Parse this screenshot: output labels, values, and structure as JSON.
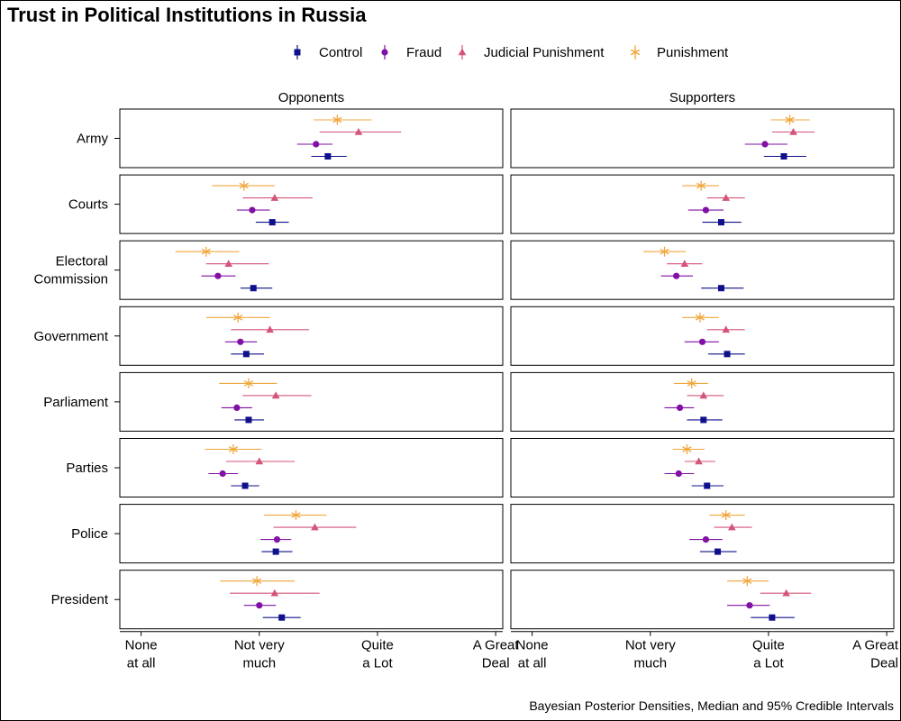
{
  "chart_data": {
    "type": "dot-interval",
    "title": "Trust in Political Institutions in Russia",
    "caption": "Bayesian Posterior Densities, Median and 95% Credible Intervals",
    "panels": [
      "Opponents",
      "Supporters"
    ],
    "institutions": [
      "Army",
      "Courts",
      "Electoral Commission",
      "Government",
      "Parliament",
      "Parties",
      "Police",
      "President"
    ],
    "institution_lines": [
      [
        "Army"
      ],
      [
        "Courts"
      ],
      [
        "Electoral",
        "Commission"
      ],
      [
        "Government"
      ],
      [
        "Parliament"
      ],
      [
        "Parties"
      ],
      [
        "Police"
      ],
      [
        "President"
      ]
    ],
    "xaxis": {
      "range": [
        0.82,
        4.06
      ],
      "ticks": [
        1,
        2,
        3,
        4
      ],
      "tick_labels": [
        [
          "None",
          "at all"
        ],
        [
          "Not very",
          "much"
        ],
        [
          "Quite",
          "a Lot"
        ],
        [
          "A Great",
          "Deal"
        ]
      ]
    },
    "series": [
      {
        "name": "Punishment",
        "color": "#f0a73d",
        "marker": "asterisk"
      },
      {
        "name": "Judicial Punishment",
        "color": "#d4547a",
        "marker": "triangle"
      },
      {
        "name": "Fraud",
        "color": "#8210a5",
        "marker": "circle"
      },
      {
        "name": "Control",
        "color": "#10108c",
        "marker": "square"
      }
    ],
    "legend_order": [
      "Control",
      "Fraud",
      "Judicial Punishment",
      "Punishment"
    ],
    "values": {
      "Opponents": {
        "Army": {
          "Punishment": [
            2.46,
            2.66,
            2.95
          ],
          "Judicial Punishment": [
            2.51,
            2.84,
            3.2
          ],
          "Fraud": [
            2.32,
            2.48,
            2.62
          ],
          "Control": [
            2.44,
            2.58,
            2.74
          ]
        },
        "Courts": {
          "Punishment": [
            1.6,
            1.87,
            2.13
          ],
          "Judicial Punishment": [
            1.86,
            2.13,
            2.45
          ],
          "Fraud": [
            1.81,
            1.94,
            2.09
          ],
          "Control": [
            1.97,
            2.11,
            2.25
          ]
        },
        "Electoral Commission": {
          "Punishment": [
            1.29,
            1.55,
            1.83
          ],
          "Judicial Punishment": [
            1.55,
            1.74,
            2.08
          ],
          "Fraud": [
            1.51,
            1.65,
            1.8
          ],
          "Control": [
            1.84,
            1.95,
            2.11
          ]
        },
        "Government": {
          "Punishment": [
            1.55,
            1.82,
            2.09
          ],
          "Judicial Punishment": [
            1.76,
            2.09,
            2.42
          ],
          "Fraud": [
            1.71,
            1.84,
            1.98
          ],
          "Control": [
            1.76,
            1.89,
            2.04
          ]
        },
        "Parliament": {
          "Punishment": [
            1.66,
            1.91,
            2.15
          ],
          "Judicial Punishment": [
            1.86,
            2.14,
            2.44
          ],
          "Fraud": [
            1.68,
            1.81,
            1.94
          ],
          "Control": [
            1.79,
            1.91,
            2.04
          ]
        },
        "Parties": {
          "Punishment": [
            1.54,
            1.78,
            2.02
          ],
          "Judicial Punishment": [
            1.72,
            2.0,
            2.3
          ],
          "Fraud": [
            1.57,
            1.69,
            1.82
          ],
          "Control": [
            1.76,
            1.88,
            2.0
          ]
        },
        "Police": {
          "Punishment": [
            2.04,
            2.31,
            2.57
          ],
          "Judicial Punishment": [
            2.12,
            2.47,
            2.82
          ],
          "Fraud": [
            2.01,
            2.15,
            2.27
          ],
          "Control": [
            2.02,
            2.14,
            2.28
          ]
        },
        "President": {
          "Punishment": [
            1.67,
            1.98,
            2.3
          ],
          "Judicial Punishment": [
            1.75,
            2.13,
            2.51
          ],
          "Fraud": [
            1.87,
            2.0,
            2.14
          ],
          "Control": [
            2.03,
            2.19,
            2.35
          ]
        }
      },
      "Supporters": {
        "Army": {
          "Punishment": [
            3.02,
            3.18,
            3.35
          ],
          "Judicial Punishment": [
            3.03,
            3.21,
            3.39
          ],
          "Fraud": [
            2.8,
            2.97,
            3.16
          ],
          "Control": [
            2.96,
            3.13,
            3.32
          ]
        },
        "Courts": {
          "Punishment": [
            2.27,
            2.43,
            2.58
          ],
          "Judicial Punishment": [
            2.48,
            2.64,
            2.8
          ],
          "Fraud": [
            2.32,
            2.47,
            2.62
          ],
          "Control": [
            2.44,
            2.6,
            2.77
          ]
        },
        "Electoral Commission": {
          "Punishment": [
            1.94,
            2.12,
            2.3
          ],
          "Judicial Punishment": [
            2.14,
            2.29,
            2.44
          ],
          "Fraud": [
            2.09,
            2.22,
            2.36
          ],
          "Control": [
            2.43,
            2.6,
            2.79
          ]
        },
        "Government": {
          "Punishment": [
            2.27,
            2.42,
            2.58
          ],
          "Judicial Punishment": [
            2.48,
            2.64,
            2.8
          ],
          "Fraud": [
            2.29,
            2.44,
            2.58
          ],
          "Control": [
            2.49,
            2.65,
            2.8
          ]
        },
        "Parliament": {
          "Punishment": [
            2.2,
            2.35,
            2.49
          ],
          "Judicial Punishment": [
            2.31,
            2.45,
            2.62
          ],
          "Fraud": [
            2.12,
            2.25,
            2.37
          ],
          "Control": [
            2.31,
            2.45,
            2.61
          ]
        },
        "Parties": {
          "Punishment": [
            2.19,
            2.31,
            2.46
          ],
          "Judicial Punishment": [
            2.29,
            2.41,
            2.55
          ],
          "Fraud": [
            2.12,
            2.24,
            2.37
          ],
          "Control": [
            2.35,
            2.48,
            2.62
          ]
        },
        "Police": {
          "Punishment": [
            2.5,
            2.64,
            2.8
          ],
          "Judicial Punishment": [
            2.54,
            2.69,
            2.86
          ],
          "Fraud": [
            2.33,
            2.47,
            2.61
          ],
          "Control": [
            2.42,
            2.57,
            2.73
          ]
        },
        "President": {
          "Punishment": [
            2.65,
            2.82,
            3.0
          ],
          "Judicial Punishment": [
            2.93,
            3.15,
            3.36
          ],
          "Fraud": [
            2.65,
            2.84,
            3.01
          ],
          "Control": [
            2.85,
            3.03,
            3.22
          ]
        }
      }
    }
  }
}
